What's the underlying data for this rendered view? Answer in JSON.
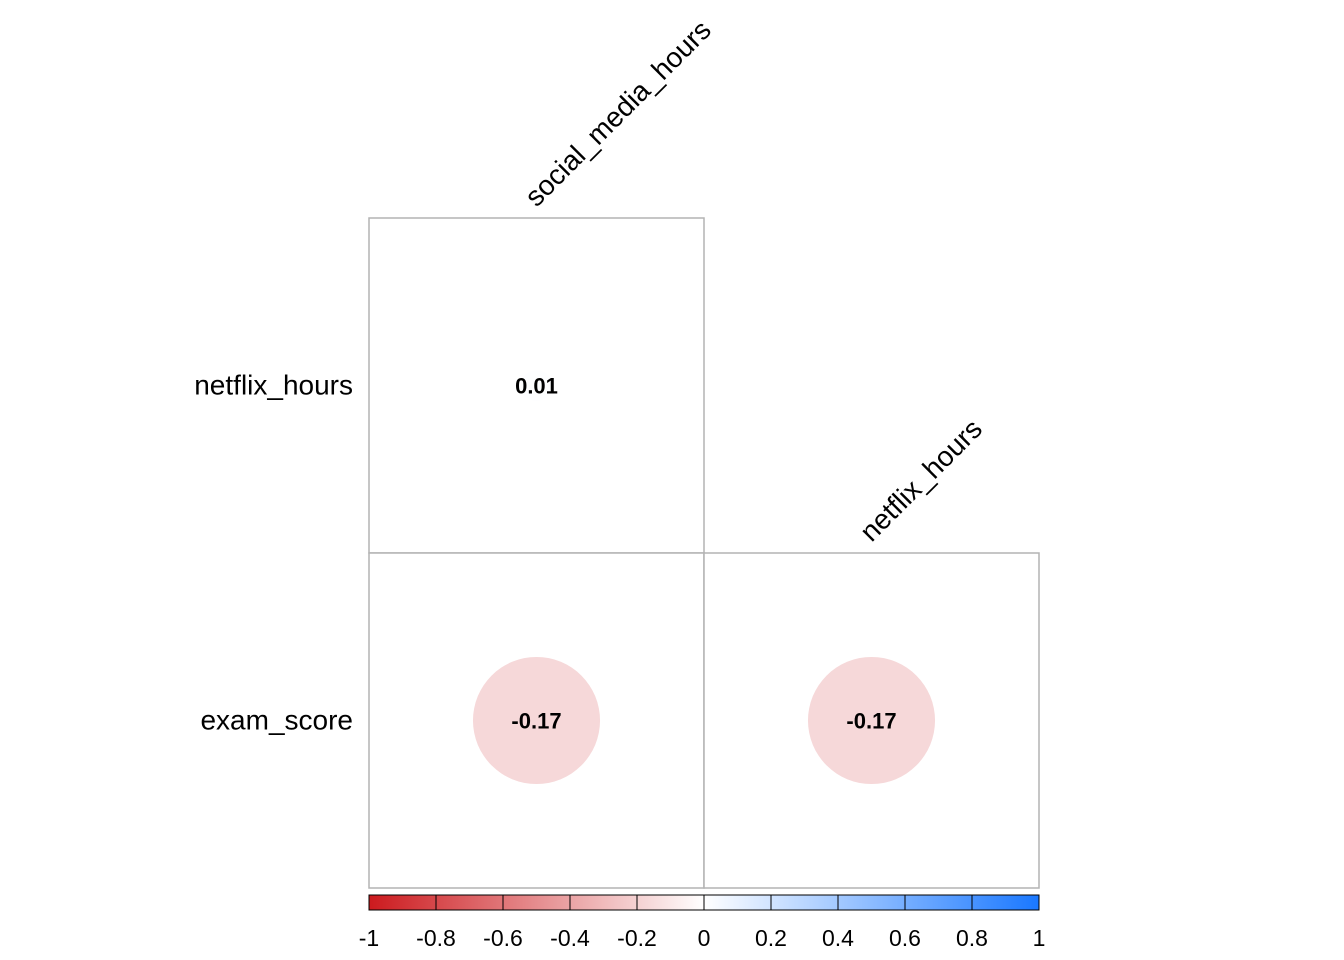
{
  "chart_data": {
    "type": "heatmap",
    "style": "correlation-matrix-lower-triangle-circles",
    "columns": [
      "social_media_hours",
      "netflix_hours"
    ],
    "rows": [
      "netflix_hours",
      "exam_score"
    ],
    "cells": [
      {
        "row": "netflix_hours",
        "col": "social_media_hours",
        "value": 0.01,
        "label": "0.01"
      },
      {
        "row": "exam_score",
        "col": "social_media_hours",
        "value": -0.17,
        "label": "-0.17"
      },
      {
        "row": "exam_score",
        "col": "netflix_hours",
        "value": -0.17,
        "label": "-0.17"
      }
    ],
    "color_scale": {
      "range": [
        -1,
        1
      ],
      "ticks": [
        "-1",
        "-0.8",
        "-0.6",
        "-0.4",
        "-0.2",
        "0",
        "0.2",
        "0.4",
        "0.6",
        "0.8",
        "1"
      ],
      "colors": {
        "negative": "#cc1a1e",
        "neutral": "#ffffff",
        "positive": "#1a78ff"
      },
      "placement": "bottom"
    },
    "cell_border_color": "#b3b3b3",
    "grid": true
  }
}
